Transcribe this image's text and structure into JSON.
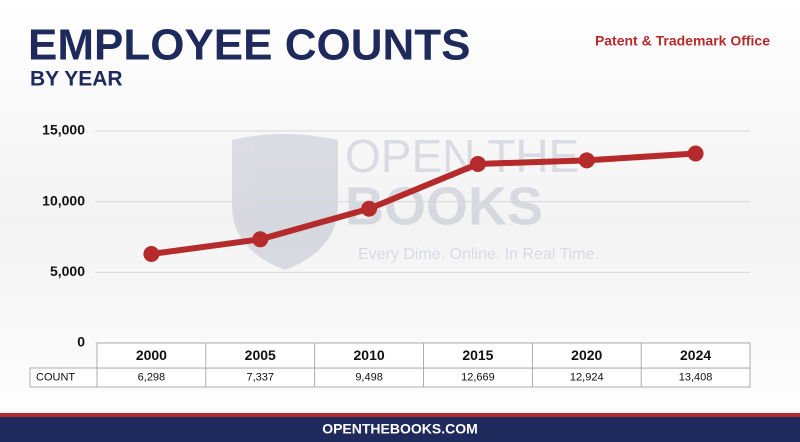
{
  "chart_data": {
    "type": "line",
    "title": "EMPLOYEE COUNTS",
    "subtitle": "BY YEAR",
    "source": "Patent & Trademark Office",
    "categories": [
      "2000",
      "2005",
      "2010",
      "2015",
      "2020",
      "2024"
    ],
    "row_label": "COUNT",
    "values": [
      6298,
      7337,
      9498,
      12669,
      12924,
      13408
    ],
    "value_labels": [
      "6,298",
      "7,337",
      "9,498",
      "12,669",
      "12,924",
      "13,408"
    ],
    "color": "#b52a2a",
    "ylim": [
      0,
      15000
    ],
    "yticks": [
      0,
      {
        "value": 5000,
        "label": "5,000"
      },
      {
        "value": 10000,
        "label": "10,000"
      },
      {
        "value": 15000,
        "label": "15,000"
      }
    ],
    "grid": true
  },
  "watermark": {
    "lines": [
      "OPEN THE",
      "BOOKS"
    ],
    "tagline": "Every Dime. Online. In Real Time."
  },
  "footer": "OPENTHEBOOKS.COM"
}
